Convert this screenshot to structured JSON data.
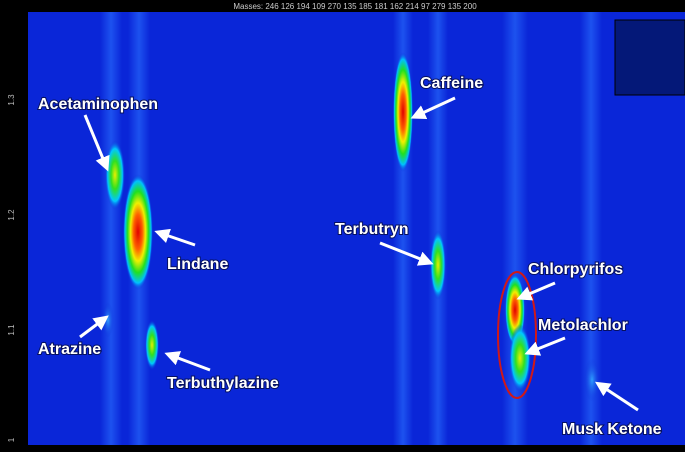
{
  "header": {
    "masses": "Masses: 246 126 194 109 270 135 185 181 162 214 97 279 135 200"
  },
  "y_axis": {
    "ticks": [
      "1.3",
      "1.2",
      "1.1",
      "1"
    ]
  },
  "labels": [
    "Acetaminophen",
    "Lindane",
    "Atrazine",
    "Terbuthylazine",
    "Caffeine",
    "Terbutryn",
    "Chlorpyrifos",
    "Metolachlor",
    "Musk Ketone"
  ]
}
